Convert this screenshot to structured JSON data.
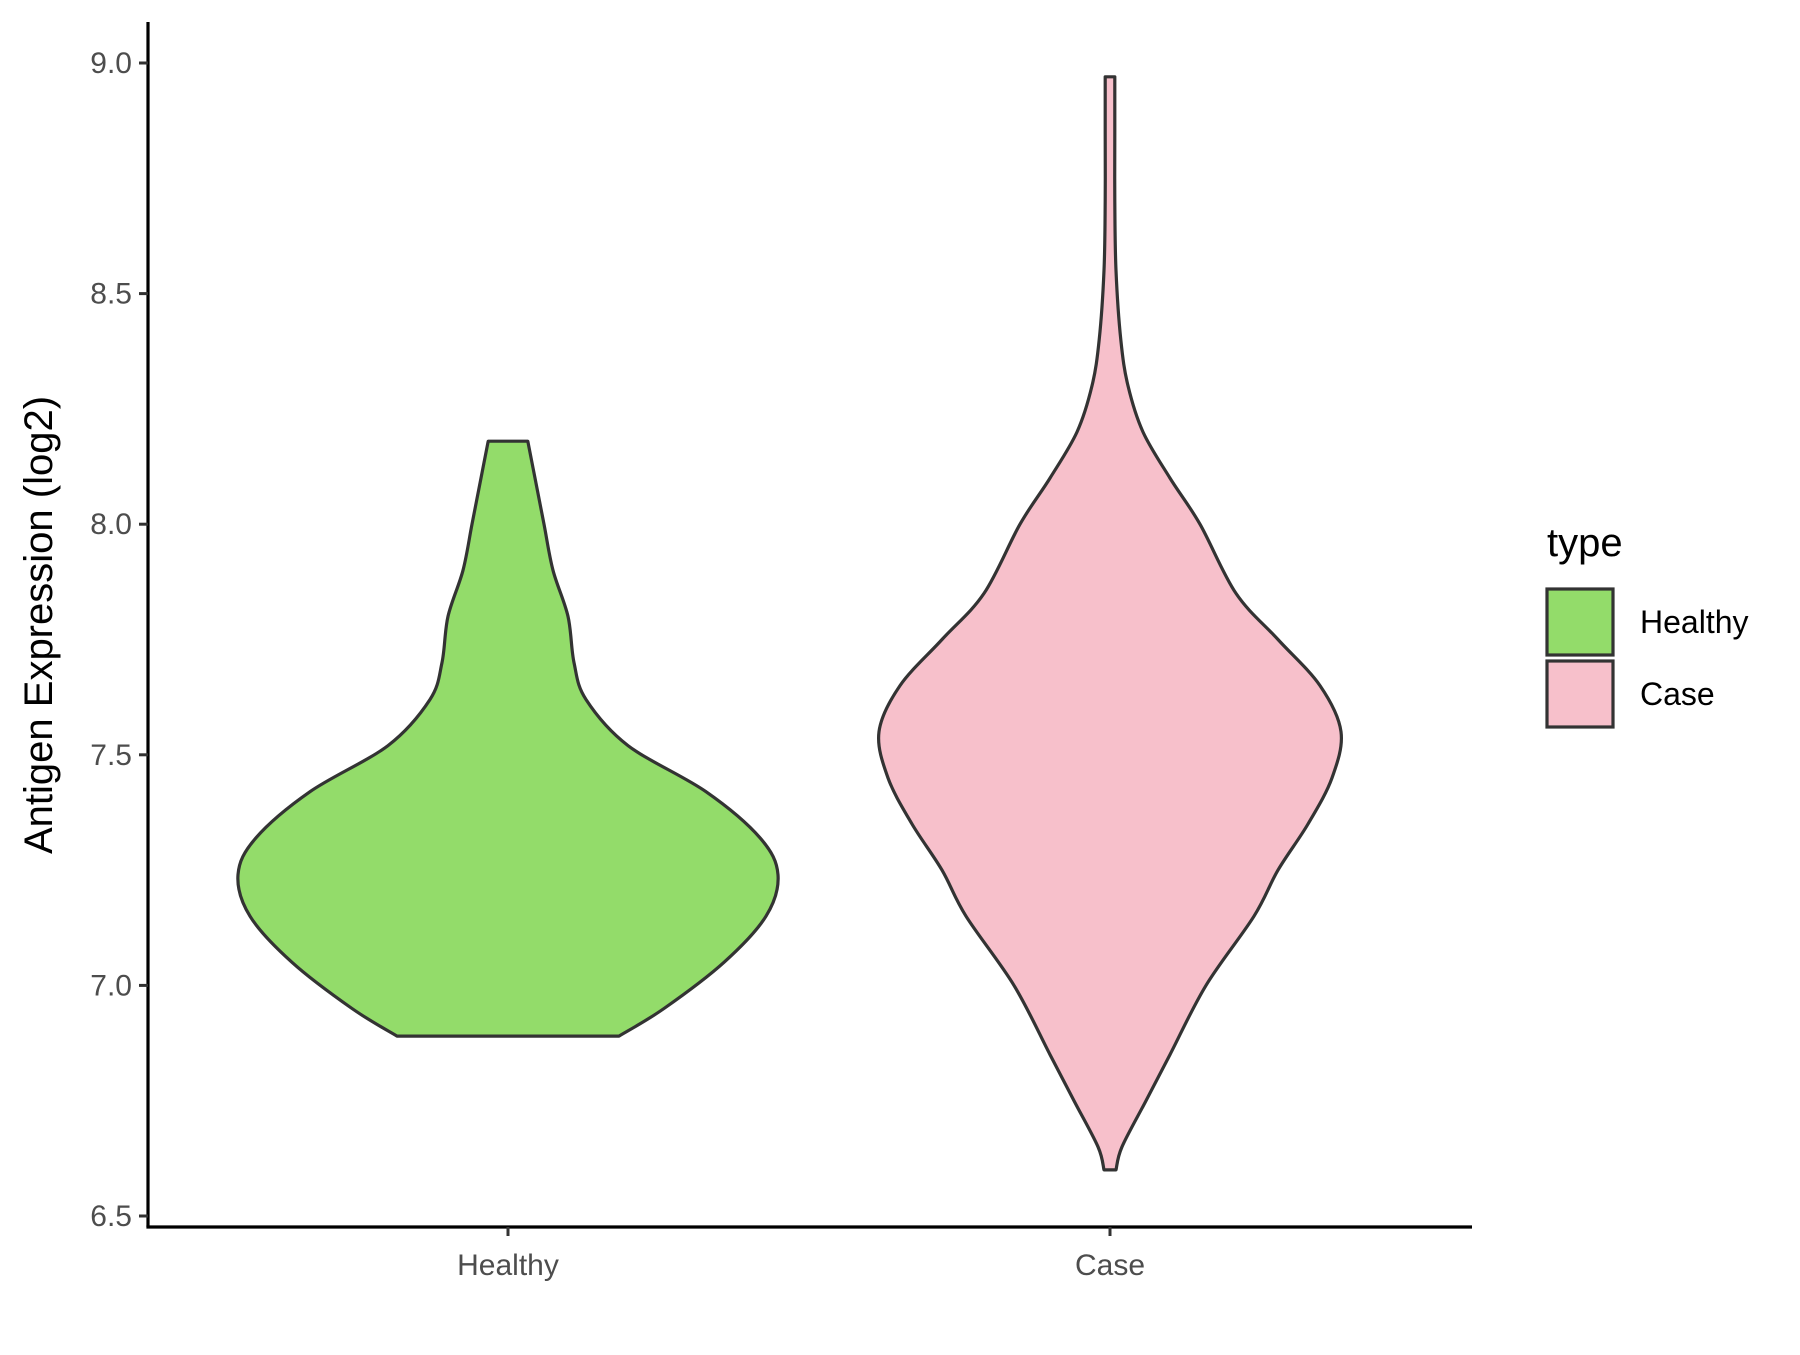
{
  "chart_data": {
    "type": "violin",
    "title": "",
    "xlabel": "",
    "ylabel": "Antigen Expression (log2)",
    "ylim": [
      6.5,
      9.0
    ],
    "y_ticks": [
      "6.5",
      "7.0",
      "7.5",
      "8.0",
      "8.5",
      "9.0"
    ],
    "categories": [
      "Healthy",
      "Case"
    ],
    "grid": false,
    "legend": {
      "title": "type",
      "placement": "right",
      "entries": [
        {
          "label": "Healthy",
          "color": "#93dc6a"
        },
        {
          "label": "Case",
          "color": "#f7c0cb"
        }
      ]
    },
    "outline_color": "#333333",
    "series": [
      {
        "name": "Healthy",
        "color": "#93dc6a",
        "min": 6.89,
        "max": 8.18,
        "profile": [
          {
            "y": 6.89,
            "halfwidth": 0.185
          },
          {
            "y": 6.95,
            "halfwidth": 0.26
          },
          {
            "y": 7.05,
            "halfwidth": 0.36
          },
          {
            "y": 7.15,
            "halfwidth": 0.43
          },
          {
            "y": 7.24,
            "halfwidth": 0.45
          },
          {
            "y": 7.32,
            "halfwidth": 0.42
          },
          {
            "y": 7.42,
            "halfwidth": 0.33
          },
          {
            "y": 7.52,
            "halfwidth": 0.2
          },
          {
            "y": 7.62,
            "halfwidth": 0.13
          },
          {
            "y": 7.7,
            "halfwidth": 0.11
          },
          {
            "y": 7.8,
            "halfwidth": 0.1
          },
          {
            "y": 7.9,
            "halfwidth": 0.075
          },
          {
            "y": 8.0,
            "halfwidth": 0.06
          },
          {
            "y": 8.1,
            "halfwidth": 0.045
          },
          {
            "y": 8.18,
            "halfwidth": 0.033
          }
        ]
      },
      {
        "name": "Case",
        "color": "#f7c0cb",
        "min": 6.6,
        "max": 8.97,
        "profile": [
          {
            "y": 6.6,
            "halfwidth": 0.01
          },
          {
            "y": 6.65,
            "halfwidth": 0.02
          },
          {
            "y": 6.75,
            "halfwidth": 0.06
          },
          {
            "y": 6.85,
            "halfwidth": 0.1
          },
          {
            "y": 7.0,
            "halfwidth": 0.16
          },
          {
            "y": 7.15,
            "halfwidth": 0.24
          },
          {
            "y": 7.25,
            "halfwidth": 0.28
          },
          {
            "y": 7.35,
            "halfwidth": 0.33
          },
          {
            "y": 7.45,
            "halfwidth": 0.37
          },
          {
            "y": 7.55,
            "halfwidth": 0.385
          },
          {
            "y": 7.65,
            "halfwidth": 0.35
          },
          {
            "y": 7.75,
            "halfwidth": 0.28
          },
          {
            "y": 7.85,
            "halfwidth": 0.21
          },
          {
            "y": 8.0,
            "halfwidth": 0.15
          },
          {
            "y": 8.1,
            "halfwidth": 0.1
          },
          {
            "y": 8.2,
            "halfwidth": 0.055
          },
          {
            "y": 8.3,
            "halfwidth": 0.03
          },
          {
            "y": 8.4,
            "halfwidth": 0.018
          },
          {
            "y": 8.55,
            "halfwidth": 0.01
          },
          {
            "y": 8.7,
            "halfwidth": 0.008
          },
          {
            "y": 8.85,
            "halfwidth": 0.008
          },
          {
            "y": 8.97,
            "halfwidth": 0.008
          }
        ]
      }
    ]
  }
}
